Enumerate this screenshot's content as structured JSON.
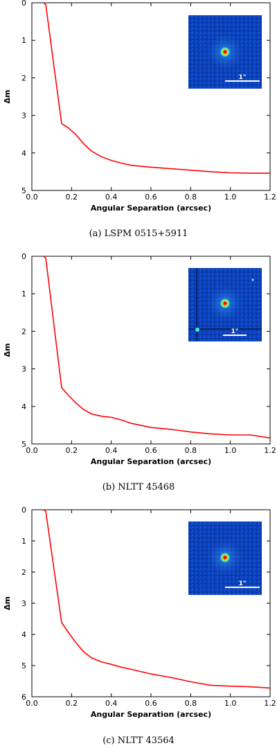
{
  "chart_data": [
    {
      "type": "line",
      "caption": "(a) LSPM 0515+5911",
      "xlabel": "Angular Separation (arcsec)",
      "ylabel": "Δm",
      "xlim": [
        0.0,
        1.2
      ],
      "ylim": [
        5,
        0
      ],
      "xticks": [
        "0.0",
        "0.2",
        "0.4",
        "0.6",
        "0.8",
        "1.0",
        "1.2"
      ],
      "yticks": [
        "0",
        "1",
        "2",
        "3",
        "4",
        "5"
      ],
      "inset_scale_label": "1\"",
      "series": [
        {
          "color": "#ff0000",
          "x": [
            0.06,
            0.07,
            0.15,
            0.18,
            0.22,
            0.26,
            0.3,
            0.35,
            0.4,
            0.45,
            0.5,
            0.6,
            0.7,
            0.8,
            0.9,
            1.0,
            1.1,
            1.2
          ],
          "y": [
            0.0,
            0.05,
            3.22,
            3.32,
            3.5,
            3.75,
            3.95,
            4.1,
            4.2,
            4.27,
            4.33,
            4.38,
            4.42,
            4.46,
            4.5,
            4.53,
            4.54,
            4.54
          ]
        }
      ]
    },
    {
      "type": "line",
      "caption": "(b) NLTT 45468",
      "xlabel": "Angular Separation (arcsec)",
      "ylabel": "Δm",
      "xlim": [
        0.0,
        1.2
      ],
      "ylim": [
        5,
        0
      ],
      "xticks": [
        "0.0",
        "0.2",
        "0.4",
        "0.6",
        "0.8",
        "1.0",
        "1.2"
      ],
      "yticks": [
        "0",
        "1",
        "2",
        "3",
        "4",
        "5"
      ],
      "inset_scale_label": "1\"",
      "series": [
        {
          "color": "#ff0000",
          "x": [
            0.06,
            0.07,
            0.15,
            0.18,
            0.22,
            0.26,
            0.3,
            0.35,
            0.4,
            0.45,
            0.5,
            0.6,
            0.7,
            0.8,
            0.9,
            1.0,
            1.1,
            1.2
          ],
          "y": [
            0.0,
            0.05,
            3.5,
            3.68,
            3.9,
            4.08,
            4.2,
            4.26,
            4.29,
            4.36,
            4.45,
            4.56,
            4.61,
            4.68,
            4.73,
            4.76,
            4.76,
            4.84
          ]
        }
      ]
    },
    {
      "type": "line",
      "caption": "(c) NLTT 43564",
      "xlabel": "Angular Separation (arcsec)",
      "ylabel": "Δm",
      "xlim": [
        0.0,
        1.2
      ],
      "ylim": [
        6,
        0
      ],
      "xticks": [
        "0.0",
        "0.2",
        "0.4",
        "0.6",
        "0.8",
        "1.0",
        "1.2"
      ],
      "yticks": [
        "0",
        "1",
        "2",
        "3",
        "4",
        "5",
        "6"
      ],
      "inset_scale_label": "1\"",
      "series": [
        {
          "color": "#ff0000",
          "x": [
            0.06,
            0.07,
            0.15,
            0.18,
            0.22,
            0.26,
            0.3,
            0.35,
            0.4,
            0.45,
            0.5,
            0.6,
            0.7,
            0.8,
            0.9,
            1.0,
            1.1,
            1.2
          ],
          "y": [
            0.0,
            0.05,
            3.62,
            3.9,
            4.25,
            4.55,
            4.75,
            4.88,
            4.96,
            5.05,
            5.12,
            5.27,
            5.38,
            5.52,
            5.63,
            5.66,
            5.68,
            5.72
          ]
        }
      ]
    }
  ]
}
